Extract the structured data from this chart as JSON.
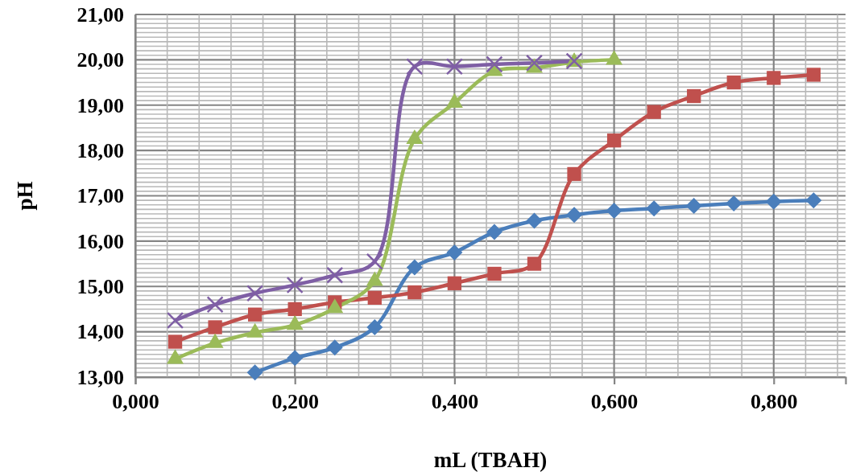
{
  "chart_data": {
    "type": "line",
    "xlabel": "mL (TBAH)",
    "ylabel": "pH",
    "xlim": [
      0,
      0.89
    ],
    "xticks": [
      {
        "value": 0,
        "label": "0,000"
      },
      {
        "value": 0.04,
        "label": null
      },
      {
        "value": 0.08,
        "label": null
      },
      {
        "value": 0.12,
        "label": null
      },
      {
        "value": 0.16,
        "label": null
      },
      {
        "value": 0.2,
        "label": "0,200"
      },
      {
        "value": 0.24,
        "label": null
      },
      {
        "value": 0.28,
        "label": null
      },
      {
        "value": 0.32,
        "label": null
      },
      {
        "value": 0.36,
        "label": null
      },
      {
        "value": 0.4,
        "label": "0,400"
      },
      {
        "value": 0.44,
        "label": null
      },
      {
        "value": 0.48,
        "label": null
      },
      {
        "value": 0.52,
        "label": null
      },
      {
        "value": 0.56,
        "label": null
      },
      {
        "value": 0.6,
        "label": "0,600"
      },
      {
        "value": 0.64,
        "label": null
      },
      {
        "value": 0.68,
        "label": null
      },
      {
        "value": 0.72,
        "label": null
      },
      {
        "value": 0.76,
        "label": null
      },
      {
        "value": 0.8,
        "label": "0,800"
      },
      {
        "value": 0.84,
        "label": null
      },
      {
        "value": 0.88,
        "label": null
      }
    ],
    "ylim": [
      13,
      21
    ],
    "yticks": [
      {
        "value": 13,
        "label": "13,00"
      },
      {
        "value": 13.1,
        "label": null
      },
      {
        "value": 13.2,
        "label": null
      },
      {
        "value": 13.3,
        "label": null
      },
      {
        "value": 13.4,
        "label": null
      },
      {
        "value": 13.5,
        "label": null
      },
      {
        "value": 13.6,
        "label": null
      },
      {
        "value": 13.7,
        "label": null
      },
      {
        "value": 13.8,
        "label": null
      },
      {
        "value": 13.9,
        "label": null
      },
      {
        "value": 14,
        "label": "14,00"
      },
      {
        "value": 14.1,
        "label": null
      },
      {
        "value": 14.2,
        "label": null
      },
      {
        "value": 14.3,
        "label": null
      },
      {
        "value": 14.4,
        "label": null
      },
      {
        "value": 14.5,
        "label": null
      },
      {
        "value": 14.6,
        "label": null
      },
      {
        "value": 14.7,
        "label": null
      },
      {
        "value": 14.8,
        "label": null
      },
      {
        "value": 14.9,
        "label": null
      },
      {
        "value": 15,
        "label": "15,00"
      },
      {
        "value": 15.1,
        "label": null
      },
      {
        "value": 15.2,
        "label": null
      },
      {
        "value": 15.3,
        "label": null
      },
      {
        "value": 15.4,
        "label": null
      },
      {
        "value": 15.5,
        "label": null
      },
      {
        "value": 15.6,
        "label": null
      },
      {
        "value": 15.7,
        "label": null
      },
      {
        "value": 15.8,
        "label": null
      },
      {
        "value": 15.9,
        "label": null
      },
      {
        "value": 16,
        "label": "16,00"
      },
      {
        "value": 16.1,
        "label": null
      },
      {
        "value": 16.2,
        "label": null
      },
      {
        "value": 16.3,
        "label": null
      },
      {
        "value": 16.4,
        "label": null
      },
      {
        "value": 16.5,
        "label": null
      },
      {
        "value": 16.6,
        "label": null
      },
      {
        "value": 16.7,
        "label": null
      },
      {
        "value": 16.8,
        "label": null
      },
      {
        "value": 16.9,
        "label": null
      },
      {
        "value": 17,
        "label": "17,00"
      },
      {
        "value": 17.1,
        "label": null
      },
      {
        "value": 17.2,
        "label": null
      },
      {
        "value": 17.3,
        "label": null
      },
      {
        "value": 17.4,
        "label": null
      },
      {
        "value": 17.5,
        "label": null
      },
      {
        "value": 17.6,
        "label": null
      },
      {
        "value": 17.7,
        "label": null
      },
      {
        "value": 17.8,
        "label": null
      },
      {
        "value": 17.9,
        "label": null
      },
      {
        "value": 18,
        "label": "18,00"
      },
      {
        "value": 18.1,
        "label": null
      },
      {
        "value": 18.2,
        "label": null
      },
      {
        "value": 18.3,
        "label": null
      },
      {
        "value": 18.4,
        "label": null
      },
      {
        "value": 18.5,
        "label": null
      },
      {
        "value": 18.6,
        "label": null
      },
      {
        "value": 18.7,
        "label": null
      },
      {
        "value": 18.8,
        "label": null
      },
      {
        "value": 18.9,
        "label": null
      },
      {
        "value": 19,
        "label": "19,00"
      },
      {
        "value": 19.1,
        "label": null
      },
      {
        "value": 19.2,
        "label": null
      },
      {
        "value": 19.3,
        "label": null
      },
      {
        "value": 19.4,
        "label": null
      },
      {
        "value": 19.5,
        "label": null
      },
      {
        "value": 19.6,
        "label": null
      },
      {
        "value": 19.7,
        "label": null
      },
      {
        "value": 19.8,
        "label": null
      },
      {
        "value": 19.9,
        "label": null
      },
      {
        "value": 20,
        "label": "20,00"
      },
      {
        "value": 20.1,
        "label": null
      },
      {
        "value": 20.2,
        "label": null
      },
      {
        "value": 20.3,
        "label": null
      },
      {
        "value": 20.4,
        "label": null
      },
      {
        "value": 20.5,
        "label": null
      },
      {
        "value": 20.6,
        "label": null
      },
      {
        "value": 20.7,
        "label": null
      },
      {
        "value": 20.8,
        "label": null
      },
      {
        "value": 20.9,
        "label": null
      },
      {
        "value": 21,
        "label": "21,00"
      }
    ],
    "grid": true,
    "series": [
      {
        "color": "#4a7ebb",
        "marker": "diamond",
        "x": [
          0.15,
          0.2,
          0.25,
          0.3,
          0.35,
          0.4,
          0.45,
          0.5,
          0.55,
          0.6,
          0.65,
          0.7,
          0.75,
          0.8,
          0.85
        ],
        "values": [
          13.1,
          13.42,
          13.65,
          14.1,
          15.42,
          15.75,
          16.2,
          16.45,
          16.58,
          16.67,
          16.72,
          16.78,
          16.83,
          16.87,
          16.9
        ]
      },
      {
        "color": "#c0504d",
        "marker": "square",
        "x": [
          0.05,
          0.1,
          0.15,
          0.2,
          0.25,
          0.3,
          0.35,
          0.4,
          0.45,
          0.5,
          0.55,
          0.6,
          0.65,
          0.7,
          0.75,
          0.8,
          0.85
        ],
        "values": [
          13.78,
          14.1,
          14.38,
          14.5,
          14.65,
          14.75,
          14.87,
          15.07,
          15.28,
          15.5,
          17.48,
          18.22,
          18.85,
          19.2,
          19.5,
          19.6,
          19.67
        ]
      },
      {
        "color": "#9bbb59",
        "marker": "triangle",
        "x": [
          0.05,
          0.1,
          0.15,
          0.2,
          0.25,
          0.3,
          0.35,
          0.4,
          0.45,
          0.5,
          0.55,
          0.6
        ],
        "values": [
          13.4,
          13.75,
          13.98,
          14.15,
          14.52,
          15.12,
          18.25,
          19.05,
          19.75,
          19.82,
          19.95,
          20.0
        ]
      },
      {
        "color": "#7f5fa5",
        "marker": "cross",
        "x": [
          0.05,
          0.1,
          0.15,
          0.2,
          0.25,
          0.3,
          0.35,
          0.4,
          0.45,
          0.5,
          0.55
        ],
        "values": [
          14.25,
          14.6,
          14.85,
          15.03,
          15.25,
          15.55,
          19.85,
          19.85,
          19.9,
          19.93,
          19.97
        ]
      }
    ]
  }
}
